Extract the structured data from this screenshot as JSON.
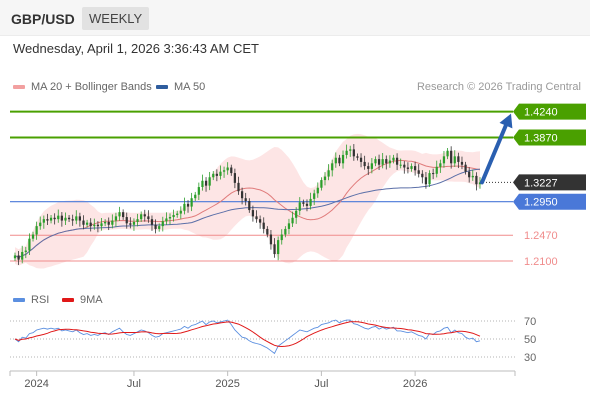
{
  "header": {
    "symbol": "GBP/USD",
    "timeframe": "WEEKLY",
    "datetime": "Wednesday, April 1, 2026 3:36:43 AM CET",
    "credit": "Research © 2026 Trading Central"
  },
  "legend": {
    "ma20_label": "MA 20 + Bollinger Bands",
    "ma50_label": "MA 50",
    "rsi_label": "RSI",
    "rsi9_label": "9MA"
  },
  "colors": {
    "candle_up": "#2b9e2b",
    "candle_down": "#333333",
    "resistance": "#4aa000",
    "support_blue": "#4a78d8",
    "support_red": "#f08c8c",
    "ma20": "#e07b7b",
    "ma50": "#5b6fa8",
    "bollinger": "#fde0e0",
    "arrow": "#2a5fb0",
    "rsi": "#5b8fe0",
    "rsi9": "#e01818"
  },
  "chart_data": [
    {
      "type": "candlestick",
      "x_ticks": [
        "2024",
        "Jul",
        "2025",
        "Jul",
        "2026"
      ],
      "ylim": [
        1.19,
        1.445
      ],
      "levels": [
        {
          "value": 1.424,
          "label": "1.4240",
          "kind": "resistance"
        },
        {
          "value": 1.387,
          "label": "1.3870",
          "kind": "resistance"
        },
        {
          "value": 1.3227,
          "label": "1.3227",
          "kind": "last"
        },
        {
          "value": 1.295,
          "label": "1.2950",
          "kind": "pivot"
        },
        {
          "value": 1.247,
          "label": "1.2470",
          "kind": "support"
        },
        {
          "value": 1.21,
          "label": "1.2100",
          "kind": "support"
        }
      ],
      "closes": [
        1.218,
        1.212,
        1.223,
        1.225,
        1.242,
        1.248,
        1.26,
        1.265,
        1.27,
        1.268,
        1.272,
        1.27,
        1.275,
        1.268,
        1.272,
        1.27,
        1.268,
        1.274,
        1.268,
        1.262,
        1.265,
        1.26,
        1.262,
        1.26,
        1.264,
        1.266,
        1.262,
        1.268,
        1.274,
        1.28,
        1.273,
        1.264,
        1.262,
        1.266,
        1.27,
        1.277,
        1.274,
        1.27,
        1.262,
        1.256,
        1.26,
        1.267,
        1.271,
        1.273,
        1.276,
        1.278,
        1.282,
        1.292,
        1.288,
        1.3,
        1.305,
        1.316,
        1.325,
        1.318,
        1.33,
        1.335,
        1.332,
        1.338,
        1.34,
        1.344,
        1.336,
        1.322,
        1.31,
        1.3,
        1.296,
        1.283,
        1.274,
        1.27,
        1.265,
        1.256,
        1.248,
        1.234,
        1.22,
        1.24,
        1.248,
        1.256,
        1.264,
        1.272,
        1.282,
        1.294,
        1.292,
        1.289,
        1.299,
        1.307,
        1.315,
        1.326,
        1.331,
        1.34,
        1.35,
        1.358,
        1.35,
        1.362,
        1.368,
        1.37,
        1.36,
        1.358,
        1.352,
        1.346,
        1.342,
        1.35,
        1.356,
        1.348,
        1.356,
        1.35,
        1.354,
        1.358,
        1.348,
        1.348,
        1.344,
        1.342,
        1.346,
        1.34,
        1.335,
        1.33,
        1.32,
        1.336,
        1.335,
        1.345,
        1.35,
        1.36,
        1.368,
        1.35,
        1.36,
        1.352,
        1.348,
        1.338,
        1.33,
        1.332,
        1.32,
        1.3227
      ],
      "rsi": {
        "ylim": [
          30,
          70
        ],
        "ticks": [
          70,
          50,
          30
        ],
        "values": [
          50,
          47,
          52,
          51,
          56,
          57,
          60,
          61,
          62,
          61,
          62,
          61,
          62,
          59,
          60,
          59,
          58,
          60,
          57,
          55,
          56,
          54,
          55,
          54,
          56,
          57,
          55,
          58,
          60,
          62,
          58,
          55,
          54,
          56,
          58,
          60,
          59,
          57,
          54,
          52,
          53,
          56,
          57,
          58,
          59,
          60,
          61,
          64,
          62,
          65,
          66,
          68,
          70,
          66,
          69,
          70,
          68,
          69,
          70,
          71,
          66,
          60,
          56,
          52,
          51,
          48,
          46,
          45,
          44,
          42,
          40,
          37,
          34,
          42,
          45,
          48,
          51,
          54,
          57,
          60,
          59,
          58,
          60,
          62,
          63,
          66,
          67,
          68,
          70,
          71,
          68,
          70,
          71,
          71,
          67,
          66,
          64,
          62,
          61,
          63,
          64,
          61,
          63,
          61,
          62,
          63,
          59,
          59,
          58,
          57,
          58,
          56,
          54,
          53,
          50,
          56,
          55,
          58,
          59,
          62,
          63,
          57,
          60,
          57,
          56,
          52,
          50,
          51,
          47,
          48
        ]
      }
    }
  ]
}
